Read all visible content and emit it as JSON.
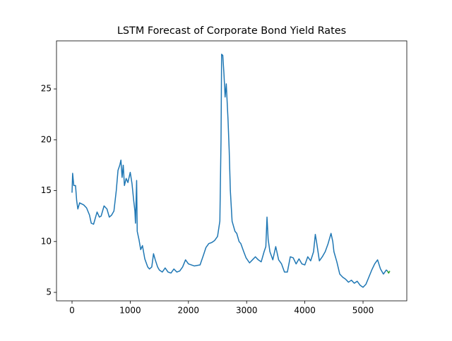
{
  "chart_data": {
    "type": "line",
    "title": "LSTM Forecast of Corporate Bond Yield Rates",
    "series": [
      {
        "color": "#1f77b4",
        "x": [
          0,
          10,
          30,
          60,
          80,
          100,
          130,
          200,
          250,
          300,
          330,
          370,
          400,
          430,
          470,
          500,
          550,
          600,
          640,
          680,
          720,
          760,
          790,
          820,
          840,
          860,
          880,
          900,
          930,
          960,
          1000,
          1030,
          1060,
          1080,
          1090,
          1110,
          1120,
          1150,
          1180,
          1210,
          1250,
          1300,
          1330,
          1370,
          1400,
          1430,
          1470,
          1500,
          1550,
          1600,
          1650,
          1700,
          1750,
          1800,
          1850,
          1900,
          1950,
          2000,
          2100,
          2200,
          2260,
          2300,
          2350,
          2400,
          2450,
          2500,
          2540,
          2560,
          2570,
          2590,
          2610,
          2630,
          2650,
          2680,
          2700,
          2720,
          2750,
          2800,
          2830,
          2870,
          2900,
          2950,
          2990,
          3050,
          3100,
          3150,
          3200,
          3250,
          3300,
          3330,
          3350,
          3370,
          3400,
          3450,
          3500,
          3550,
          3600,
          3650,
          3700,
          3750,
          3800,
          3850,
          3900,
          3950,
          4000,
          4050,
          4100,
          4150,
          4180,
          4200,
          4250,
          4300,
          4350,
          4400,
          4450,
          4480,
          4500,
          4550,
          4600,
          4650,
          4700,
          4750,
          4800,
          4850,
          4900,
          4950,
          5000,
          5050,
          5100,
          5150,
          5200,
          5250,
          5300,
          5350,
          5400,
          5420
        ],
        "values": [
          14.8,
          16.7,
          15.5,
          15.5,
          14,
          13.2,
          13.8,
          13.6,
          13.3,
          12.6,
          11.8,
          11.7,
          12.3,
          12.9,
          12.4,
          12.5,
          13.5,
          13.2,
          12.4,
          12.6,
          13,
          15,
          17,
          17.5,
          18,
          16.3,
          17.5,
          15.5,
          16.2,
          15.8,
          16.8,
          15.7,
          14,
          13,
          11.8,
          16,
          11,
          10.2,
          9.2,
          9.6,
          8.3,
          7.5,
          7.3,
          7.5,
          8.8,
          8.2,
          7.5,
          7.2,
          7,
          7.4,
          7,
          6.9,
          7.3,
          7,
          7.1,
          7.5,
          8.2,
          7.8,
          7.6,
          7.7,
          8.7,
          9.4,
          9.8,
          9.9,
          10.1,
          10.5,
          12,
          20,
          28.4,
          28.3,
          26.5,
          24.2,
          25.5,
          22,
          19,
          15,
          12,
          11,
          10.8,
          10,
          9.8,
          9,
          8.4,
          7.9,
          8.2,
          8.5,
          8.2,
          8,
          9,
          9.5,
          12.4,
          10.2,
          9,
          8.2,
          9.5,
          8.2,
          7.8,
          7,
          7,
          8.5,
          8.4,
          7.8,
          8.3,
          7.8,
          7.7,
          8.5,
          8.1,
          9,
          10.7,
          10,
          8.1,
          8.5,
          9,
          9.8,
          10.8,
          10,
          9,
          8,
          6.8,
          6.5,
          6.3,
          6,
          6.2,
          5.9,
          6.1,
          5.7,
          5.5,
          5.8,
          6.5,
          7.2,
          7.8,
          8.2,
          7.3,
          6.8,
          7.2,
          7.1
        ]
      },
      {
        "color": "#2ca02c",
        "x": [
          5420,
          5440,
          5460
        ],
        "values": [
          7.1,
          6.9,
          7.1
        ]
      }
    ],
    "xlim": [
      -267,
      5752
    ],
    "xticks": [
      0,
      1000,
      2000,
      3000,
      4000,
      5000
    ],
    "ylim": [
      4.17,
      29.72
    ],
    "yticks": [
      5,
      10,
      15,
      20,
      25
    ]
  }
}
